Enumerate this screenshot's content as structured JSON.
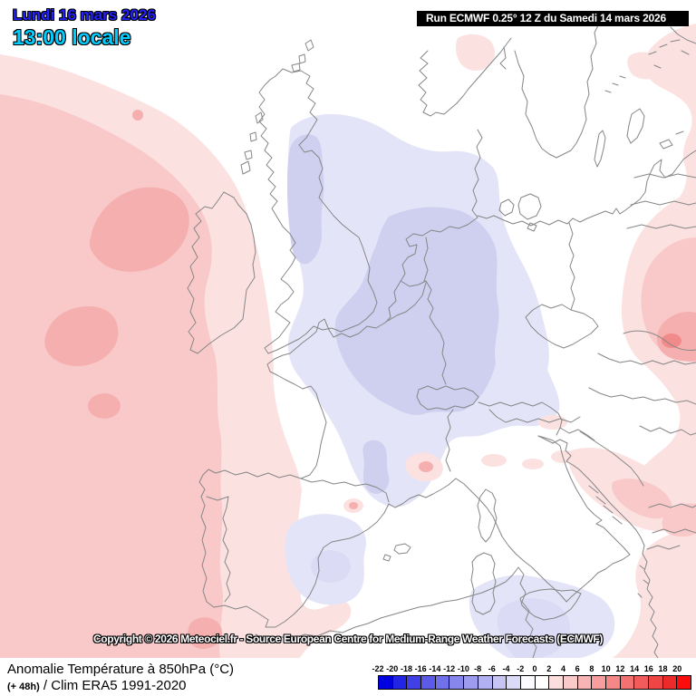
{
  "header": {
    "date_line": "Lundi 16 mars 2026",
    "time_line": "13:00 locale",
    "run_info": "Run ECMWF 0.25° 12 Z du Samedi 14 mars 2026"
  },
  "map": {
    "copyright": "Copyright © 2026 Meteociel.fr - Source European Centre for Medium-Range Weather Forecasts (ECMWF)"
  },
  "footer": {
    "title": "Anomalie Température à 850hPa (°C)",
    "lead_time": "(+ 48h)",
    "clim": " / Clim ERA5 1991-2020"
  },
  "colorbar": {
    "unit": "°C",
    "labels": [
      "-22",
      "-20",
      "-18",
      "-16",
      "-14",
      "-12",
      "-10",
      "-8",
      "-6",
      "-4",
      "-2",
      "0",
      "2",
      "4",
      "6",
      "8",
      "10",
      "12",
      "14",
      "16",
      "18",
      "20"
    ],
    "cell_colors": [
      "#0202e0",
      "#2424e4",
      "#4140e6",
      "#5b5ae9",
      "#7170eb",
      "#8786ed",
      "#9c9bef",
      "#b1b0f2",
      "#c6c5f4",
      "#dbdaf7",
      "#fbfbff",
      "#ffffff",
      "#fcdede",
      "#fac9c9",
      "#f8b3b3",
      "#f79d9d",
      "#f58787",
      "#f37171",
      "#f15b5b",
      "#ef4545",
      "#ed2a2a",
      "#fc0d0d"
    ]
  },
  "colors": {
    "pink1": "#fce1e1",
    "pink2": "#f9c9c9",
    "pink3": "#f5afaf",
    "pinkspot": "#f18a8a",
    "blue1": "#e4e4f8",
    "blue15": "#dbdbf5",
    "blue2": "#cfcff0",
    "border": "#868686",
    "run_bg": "#000000",
    "run_fg": "#ffffff",
    "date_color": "#2222ff",
    "time_color": "#00ccff"
  }
}
